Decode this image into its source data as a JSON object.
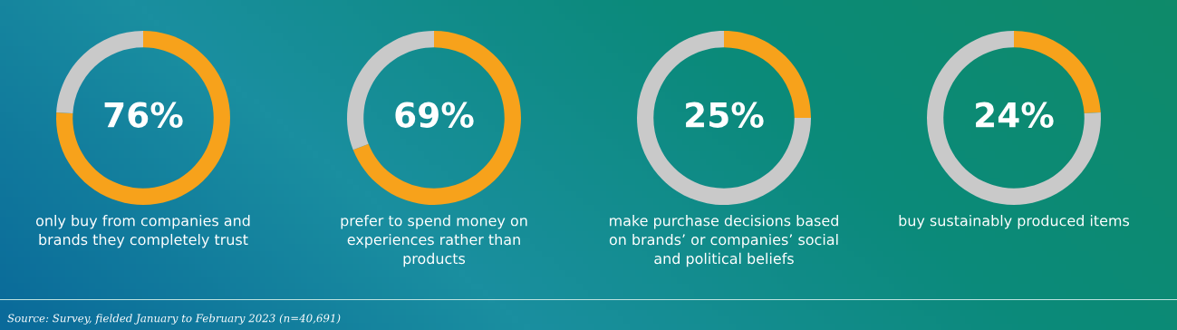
{
  "chart_data": [
    {
      "type": "donut",
      "categories": [
        null,
        null
      ],
      "values": [
        76,
        24
      ],
      "colors": [
        "#f7a21b",
        "#c9c9c9"
      ],
      "value_labels": [
        "76%",
        null
      ],
      "xlabel": "only buy from companies and\nbrands they completely trust",
      "annotations": [
        "Source: Survey, fielded January to February 2023 (n=40,691)"
      ]
    },
    {
      "type": "donut",
      "categories": [
        null,
        null
      ],
      "values": [
        69,
        31
      ],
      "colors": [
        "#f7a21b",
        "#c9c9c9"
      ],
      "value_labels": [
        "69%",
        null
      ],
      "xlabel": "prefer to spend money on\nexperiences rather than\nproducts"
    },
    {
      "type": "donut",
      "categories": [
        null,
        null
      ],
      "values": [
        25,
        75
      ],
      "colors": [
        "#f7a21b",
        "#c9c9c9"
      ],
      "value_labels": [
        "25%",
        null
      ],
      "xlabel": "make purchase decisions based\non brands’ or companies’ social\nand political beliefs"
    },
    {
      "type": "donut",
      "categories": [
        null,
        null
      ],
      "values": [
        24,
        76
      ],
      "colors": [
        "#f7a21b",
        "#c9c9c9"
      ],
      "value_labels": [
        "24%",
        null
      ],
      "xlabel": "buy sustainably produced items"
    }
  ]
}
